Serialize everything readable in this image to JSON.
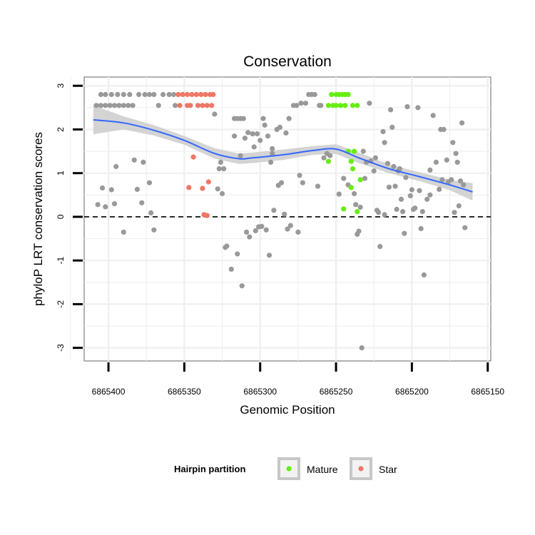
{
  "chart_data": {
    "type": "scatter",
    "title": "Conservation",
    "xlabel": "Genomic Position",
    "ylabel": "phyloP LRT conservation scores",
    "x_reversed": true,
    "xlim": [
      6865416,
      6865148
    ],
    "ylim": [
      -3.3,
      3.2
    ],
    "x_ticks": [
      6865400,
      6865350,
      6865300,
      6865250,
      6865200,
      6865150
    ],
    "x_tick_labels": [
      "6865400",
      "6865350",
      "6865300",
      "6865250",
      "6865200",
      "6865150"
    ],
    "y_ticks": [
      -3,
      -2,
      -1,
      0,
      1,
      2,
      3
    ],
    "y_tick_labels": [
      "-3",
      "-2",
      "-1",
      "0",
      "1",
      "2",
      "3"
    ],
    "grid": true,
    "reference_line": {
      "y": 0,
      "style": "dashed"
    },
    "legend": {
      "title": "Hairpin partition",
      "position": "bottom",
      "entries": [
        {
          "label": "Mature",
          "color": "#66ee11"
        },
        {
          "label": "Star",
          "color": "#ee7766"
        }
      ]
    },
    "colors": {
      "other": "#999999",
      "Mature": "#66ee11",
      "Star": "#ee7766",
      "smooth_line": "#3366ff",
      "confidence_band": "#cccccc"
    },
    "series": [
      {
        "color_key": "other",
        "points": [
          [
            6865405,
            2.8
          ],
          [
            6865402,
            2.8
          ],
          [
            6865398,
            2.8
          ],
          [
            6865394,
            2.8
          ],
          [
            6865390,
            2.8
          ],
          [
            6865386,
            2.8
          ],
          [
            6865380,
            2.8
          ],
          [
            6865376,
            2.8
          ],
          [
            6865373,
            2.8
          ],
          [
            6865370,
            2.8
          ],
          [
            6865364,
            2.8
          ],
          [
            6865360,
            2.8
          ],
          [
            6865357,
            2.8
          ],
          [
            6865408,
            2.55
          ],
          [
            6865405,
            2.55
          ],
          [
            6865402,
            2.55
          ],
          [
            6865399,
            2.55
          ],
          [
            6865396,
            2.55
          ],
          [
            6865393,
            2.55
          ],
          [
            6865390,
            2.55
          ],
          [
            6865387,
            2.55
          ],
          [
            6865384,
            2.55
          ],
          [
            6865367,
            2.55
          ],
          [
            6865356,
            2.55
          ],
          [
            6865407,
            0.28
          ],
          [
            6865404,
            0.66
          ],
          [
            6865402,
            0.23
          ],
          [
            6865398,
            0.62
          ],
          [
            6865396,
            0.3
          ],
          [
            6865395,
            1.15
          ],
          [
            6865390,
            -0.35
          ],
          [
            6865383,
            1.3
          ],
          [
            6865381,
            0.63
          ],
          [
            6865378,
            0.32
          ],
          [
            6865377,
            1.25
          ],
          [
            6865373,
            0.78
          ],
          [
            6865372,
            0.09
          ],
          [
            6865370,
            -0.3
          ],
          [
            6865330,
            2.35
          ],
          [
            6865328,
            0.64
          ],
          [
            6865327,
            1.1
          ],
          [
            6865326,
            1.25
          ],
          [
            6865325,
            0.53
          ],
          [
            6865324,
            1.1
          ],
          [
            6865323,
            -0.7
          ],
          [
            6865322,
            -0.67
          ],
          [
            6865319,
            -1.2
          ],
          [
            6865317,
            1.85
          ],
          [
            6865317,
            2.25
          ],
          [
            6865315,
            2.25
          ],
          [
            6865313,
            2.25
          ],
          [
            6865311,
            2.25
          ],
          [
            6865315,
            -0.85
          ],
          [
            6865313,
            1.4
          ],
          [
            6865312,
            -1.58
          ],
          [
            6865310,
            1.8
          ],
          [
            6865309,
            -0.35
          ],
          [
            6865308,
            1.93
          ],
          [
            6865307,
            -0.46
          ],
          [
            6865305,
            1.9
          ],
          [
            6865304,
            1.6
          ],
          [
            6865303,
            -0.32
          ],
          [
            6865302,
            1.9
          ],
          [
            6865301,
            -0.23
          ],
          [
            6865300,
            1.75
          ],
          [
            6865299,
            -0.22
          ],
          [
            6865298,
            2.25
          ],
          [
            6865297,
            2.1
          ],
          [
            6865296,
            -0.3
          ],
          [
            6865295,
            1.85
          ],
          [
            6865294,
            -0.88
          ],
          [
            6865293,
            1.25
          ],
          [
            6865292,
            1.45
          ],
          [
            6865292,
            1.56
          ],
          [
            6865291,
            0.15
          ],
          [
            6865289,
            2.0
          ],
          [
            6865288,
            0.72
          ],
          [
            6865287,
            2.05
          ],
          [
            6865286,
            0.78
          ],
          [
            6865284,
            0.06
          ],
          [
            6865283,
            1.92
          ],
          [
            6865282,
            -0.28
          ],
          [
            6865281,
            2.25
          ],
          [
            6865280,
            -0.2
          ],
          [
            6865278,
            2.55
          ],
          [
            6865276,
            2.55
          ],
          [
            6865275,
            -0.35
          ],
          [
            6865274,
            0.95
          ],
          [
            6865273,
            2.6
          ],
          [
            6865272,
            0.78
          ],
          [
            6865270,
            2.6
          ],
          [
            6865268,
            2.8
          ],
          [
            6865266,
            2.8
          ],
          [
            6865264,
            2.8
          ],
          [
            6865262,
            0.7
          ],
          [
            6865261,
            2.55
          ],
          [
            6865260,
            2.55
          ],
          [
            6865258,
            1.35
          ],
          [
            6865256,
            1.45
          ],
          [
            6865254,
            1.4
          ],
          [
            6865248,
            0.52
          ],
          [
            6865245,
            0.88
          ],
          [
            6865242,
            0.73
          ],
          [
            6865238,
            0.53
          ],
          [
            6865237,
            0.28
          ],
          [
            6865236,
            -0.4
          ],
          [
            6865235,
            -0.33
          ],
          [
            6865234,
            0.22
          ],
          [
            6865233,
            -3.0
          ],
          [
            6865232,
            1.5
          ],
          [
            6865231,
            0.88
          ],
          [
            6865230,
            1.25
          ],
          [
            6865228,
            2.6
          ],
          [
            6865227,
            1.28
          ],
          [
            6865225,
            1.05
          ],
          [
            6865224,
            1.35
          ],
          [
            6865223,
            0.15
          ],
          [
            6865222,
            0.1
          ],
          [
            6865221,
            -0.68
          ],
          [
            6865219,
            1.95
          ],
          [
            6865218,
            1.7
          ],
          [
            6865218,
            0.05
          ],
          [
            6865216,
            1.22
          ],
          [
            6865215,
            0.68
          ],
          [
            6865214,
            2.45
          ],
          [
            6865213,
            2.05
          ],
          [
            6865212,
            1.15
          ],
          [
            6865211,
            0.7
          ],
          [
            6865210,
            0.17
          ],
          [
            6865209,
            1.05
          ],
          [
            6865208,
            1.1
          ],
          [
            6865207,
            0.4
          ],
          [
            6865206,
            0.12
          ],
          [
            6865205,
            -0.38
          ],
          [
            6865204,
            0.9
          ],
          [
            6865203,
            2.52
          ],
          [
            6865201,
            0.48
          ],
          [
            6865200,
            0.62
          ],
          [
            6865199,
            0.17
          ],
          [
            6865198,
            0.2
          ],
          [
            6865196,
            2.5
          ],
          [
            6865195,
            0.6
          ],
          [
            6865194,
            -0.27
          ],
          [
            6865193,
            0.12
          ],
          [
            6865192,
            -1.33
          ],
          [
            6865190,
            0.4
          ],
          [
            6865188,
            1.07
          ],
          [
            6865188,
            0.5
          ],
          [
            6865186,
            2.32
          ],
          [
            6865184,
            1.25
          ],
          [
            6865182,
            0.63
          ],
          [
            6865181,
            2.0
          ],
          [
            6865180,
            0.85
          ],
          [
            6865179,
            2.0
          ],
          [
            6865177,
            1.3
          ],
          [
            6865176,
            0.8
          ],
          [
            6865174,
            0.85
          ],
          [
            6865173,
            1.7
          ],
          [
            6865172,
            0.1
          ],
          [
            6865171,
            1.45
          ],
          [
            6865170,
            1.25
          ],
          [
            6865169,
            0.25
          ],
          [
            6865168,
            0.82
          ],
          [
            6865167,
            2.15
          ],
          [
            6865166,
            0.73
          ],
          [
            6865165,
            -0.25
          ]
        ]
      },
      {
        "name": "Star",
        "color_key": "Star",
        "points": [
          [
            6865354,
            2.8
          ],
          [
            6865351,
            2.8
          ],
          [
            6865348,
            2.8
          ],
          [
            6865345,
            2.8
          ],
          [
            6865342,
            2.8
          ],
          [
            6865339,
            2.8
          ],
          [
            6865336,
            2.8
          ],
          [
            6865333,
            2.8
          ],
          [
            6865331,
            2.8
          ],
          [
            6865353,
            2.55
          ],
          [
            6865348,
            2.55
          ],
          [
            6865346,
            2.55
          ],
          [
            6865341,
            2.55
          ],
          [
            6865338,
            2.55
          ],
          [
            6865335,
            2.55
          ],
          [
            6865332,
            2.55
          ],
          [
            6865344,
            1.37
          ],
          [
            6865347,
            0.67
          ],
          [
            6865338,
            0.65
          ],
          [
            6865334,
            0.8
          ],
          [
            6865337,
            0.05
          ],
          [
            6865335,
            0.03
          ]
        ]
      },
      {
        "name": "Mature",
        "color_key": "Mature",
        "points": [
          [
            6865253,
            2.8
          ],
          [
            6865250,
            2.8
          ],
          [
            6865248,
            2.8
          ],
          [
            6865246,
            2.8
          ],
          [
            6865244,
            2.8
          ],
          [
            6865242,
            2.8
          ],
          [
            6865255,
            2.55
          ],
          [
            6865252,
            2.55
          ],
          [
            6865250,
            2.55
          ],
          [
            6865247,
            2.55
          ],
          [
            6865244,
            2.55
          ],
          [
            6865239,
            2.55
          ],
          [
            6865236,
            2.55
          ],
          [
            6865255,
            1.27
          ],
          [
            6865242,
            1.5
          ],
          [
            6865240,
            1.27
          ],
          [
            6865239,
            1.1
          ],
          [
            6865234,
            0.85
          ],
          [
            6865240,
            0.67
          ],
          [
            6865245,
            0.18
          ],
          [
            6865236,
            0.12
          ],
          [
            6865238,
            1.5
          ]
        ]
      }
    ],
    "smooth": {
      "x": [
        6865410,
        6865390,
        6865370,
        6865350,
        6865330,
        6865314,
        6865305,
        6865285,
        6865265,
        6865250,
        6865235,
        6865215,
        6865195,
        6865175,
        6865160
      ],
      "y": [
        2.22,
        2.15,
        1.98,
        1.75,
        1.45,
        1.33,
        1.35,
        1.42,
        1.52,
        1.55,
        1.35,
        1.1,
        0.92,
        0.73,
        0.57
      ],
      "band_upper": [
        2.55,
        2.3,
        2.1,
        1.85,
        1.57,
        1.45,
        1.47,
        1.54,
        1.62,
        1.66,
        1.47,
        1.2,
        1.02,
        0.85,
        0.77
      ],
      "band_lower": [
        1.89,
        2.0,
        1.86,
        1.65,
        1.33,
        1.21,
        1.23,
        1.3,
        1.42,
        1.44,
        1.23,
        1.0,
        0.82,
        0.61,
        0.37
      ]
    }
  }
}
